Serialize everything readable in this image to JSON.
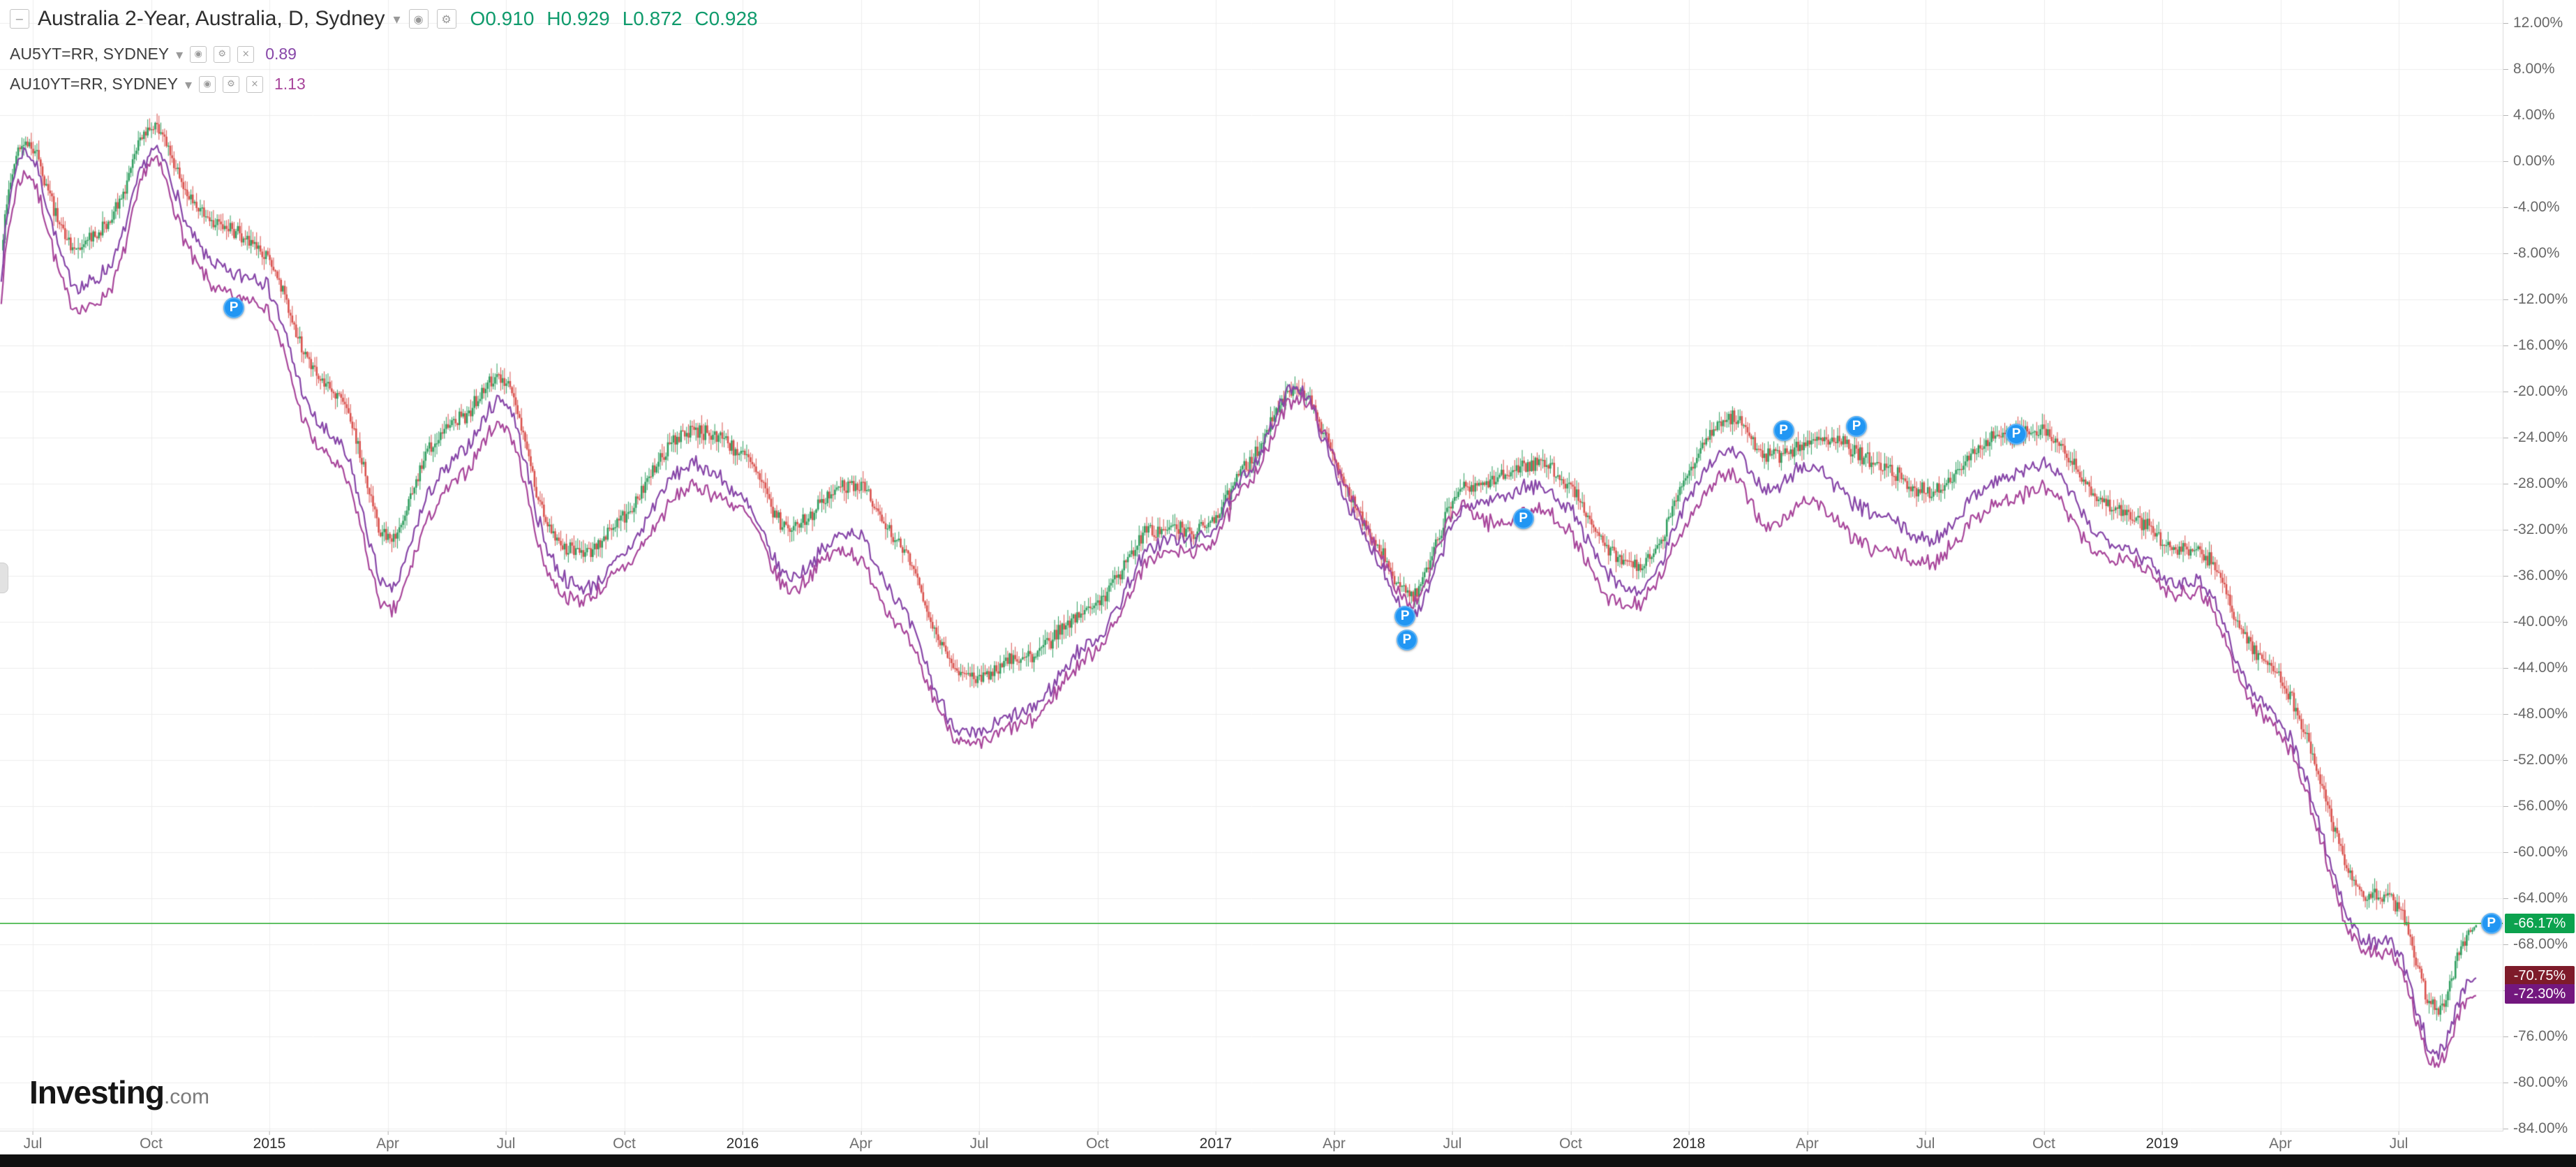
{
  "legend": {
    "collapse_glyph": "−",
    "title": "Australia 2-Year, Australia, D, Sydney",
    "caret": "▾",
    "ohlc": [
      "O0.910",
      "H0.929",
      "L0.872",
      "C0.928"
    ],
    "ohlc_color": "#0f9b6c",
    "icons": {
      "visibility": "◉",
      "settings": "⚙",
      "close": "×"
    },
    "series_rows": [
      {
        "label": "AU5YT=RR, SYDNEY",
        "value": "0.89",
        "color": "#8746a8"
      },
      {
        "label": "AU10YT=RR, SYDNEY",
        "value": "1.13",
        "color": "#a8469b"
      }
    ]
  },
  "logo": {
    "main": "Investing",
    "suffix": ".com"
  },
  "price_scale": {
    "tick_labels": [
      "12.00%",
      "8.00%",
      "4.00%",
      "0.00%",
      "-4.00%",
      "-8.00%",
      "-12.00%",
      "-16.00%",
      "-20.00%",
      "-24.00%",
      "-28.00%",
      "-32.00%",
      "-36.00%",
      "-40.00%",
      "-44.00%",
      "-48.00%",
      "-52.00%",
      "-56.00%",
      "-60.00%",
      "-64.00%",
      "-68.00%",
      "-72.00%",
      "-76.00%",
      "-80.00%",
      "-84.00%"
    ],
    "top_value": 12,
    "step": 4
  },
  "time_scale": {
    "ticks": [
      {
        "label": "Jul",
        "m": 0
      },
      {
        "label": "Oct",
        "m": 3
      },
      {
        "label": "2015",
        "m": 6,
        "year": true
      },
      {
        "label": "Apr",
        "m": 9
      },
      {
        "label": "Jul",
        "m": 12
      },
      {
        "label": "Oct",
        "m": 15
      },
      {
        "label": "2016",
        "m": 18,
        "year": true
      },
      {
        "label": "Apr",
        "m": 21
      },
      {
        "label": "Jul",
        "m": 24
      },
      {
        "label": "Oct",
        "m": 27
      },
      {
        "label": "2017",
        "m": 30,
        "year": true
      },
      {
        "label": "Apr",
        "m": 33
      },
      {
        "label": "Jul",
        "m": 36
      },
      {
        "label": "Oct",
        "m": 39
      },
      {
        "label": "2018",
        "m": 42,
        "year": true
      },
      {
        "label": "Apr",
        "m": 45
      },
      {
        "label": "Jul",
        "m": 48
      },
      {
        "label": "Oct",
        "m": 51
      },
      {
        "label": "2019",
        "m": 54,
        "year": true
      },
      {
        "label": "Apr",
        "m": 57
      },
      {
        "label": "Jul",
        "m": 60
      }
    ]
  },
  "price_labels": [
    {
      "text": "-66.17%",
      "value": -66.17,
      "bg": "#0ca24e"
    },
    {
      "text": "-70.75%",
      "value": -70.75,
      "bg": "#7e1b2a"
    },
    {
      "text": "-72.30%",
      "value": -72.3,
      "bg": "#73177e"
    }
  ],
  "current_price_line": {
    "value": -66.17,
    "color": "#44b649"
  },
  "markers": {
    "glyph": "P",
    "color": "#2196f3",
    "points": [
      {
        "m": 5.1,
        "v": -12.7
      },
      {
        "m": 34.8,
        "v": -39.5
      },
      {
        "m": 34.85,
        "v": -41.6
      },
      {
        "m": 37.8,
        "v": -31.0
      },
      {
        "m": 44.4,
        "v": -23.4
      },
      {
        "m": 46.25,
        "v": -23.0
      },
      {
        "m": 50.3,
        "v": -23.7
      },
      {
        "m": 62.35,
        "v": -66.17
      }
    ]
  },
  "chart_data": {
    "type": "mixed",
    "title": "Australia 2-Year, Australia, D, Sydney",
    "x_start": "2014-07",
    "x_end": "2019-09",
    "x_unit": "months",
    "y_unit": "percent change",
    "ylim": [
      -84,
      12
    ],
    "grid": true,
    "grid_color": "#ededed",
    "legend_position": "top-left",
    "series": [
      {
        "name": "Australia 2-Year (AU2YT)",
        "type": "candlestick",
        "up_color": "#2f9e5f",
        "down_color": "#d9504c",
        "last_close_pct": -66.17,
        "monthly_pct": [
          0,
          -7,
          -5,
          3,
          -5,
          -7,
          -10,
          -17,
          -22,
          -32,
          -26,
          -22,
          -20,
          -30,
          -33,
          -29,
          -25,
          -23,
          -26,
          -31,
          -29,
          -27,
          -33,
          -42,
          -46,
          -44,
          -41,
          -38,
          -33,
          -33,
          -32,
          -27,
          -20,
          -26,
          -32,
          -38,
          -30,
          -29,
          -26,
          -28,
          -32,
          -34,
          -26,
          -23,
          -25,
          -24,
          -23,
          -26,
          -28,
          -27,
          -24,
          -24,
          -27,
          -30,
          -33,
          -35,
          -42,
          -46,
          -54,
          -63,
          -65,
          -74,
          -66.17
        ]
      },
      {
        "name": "AU5YT=RR",
        "type": "line",
        "color": "#8746a8",
        "last_close_pct": -70.75,
        "monthly_pct": [
          -1,
          -10,
          -9,
          1,
          -8,
          -11,
          -13,
          -21,
          -26,
          -36,
          -30,
          -25,
          -22,
          -32,
          -36,
          -32,
          -28,
          -26,
          -30,
          -35,
          -33,
          -31,
          -38,
          -47,
          -51,
          -49,
          -45,
          -41,
          -35,
          -34,
          -33,
          -28,
          -20,
          -27,
          -33,
          -40,
          -32,
          -31,
          -28,
          -30,
          -34,
          -36,
          -28,
          -26,
          -28,
          -26,
          -27,
          -30,
          -32,
          -31,
          -28,
          -27,
          -30,
          -33,
          -36,
          -38,
          -46,
          -50,
          -58,
          -67,
          -69,
          -78,
          -70.75
        ]
      },
      {
        "name": "AU10YT=RR",
        "type": "line",
        "color": "#a8469b",
        "last_close_pct": -72.3,
        "monthly_pct": [
          -3,
          -12,
          -11,
          0,
          -10,
          -13,
          -15,
          -23,
          -28,
          -38,
          -32,
          -27,
          -24,
          -34,
          -37,
          -33,
          -30,
          -28,
          -31,
          -36,
          -34,
          -33,
          -40,
          -48,
          -52,
          -50,
          -46,
          -42,
          -36,
          -35,
          -34,
          -29,
          -21,
          -26,
          -32,
          -39,
          -31,
          -33,
          -30,
          -32,
          -36,
          -37,
          -30,
          -28,
          -31,
          -29,
          -30,
          -33,
          -34,
          -33,
          -30,
          -29,
          -32,
          -34,
          -37,
          -39,
          -47,
          -51,
          -59,
          -68,
          -70,
          -79,
          -72.3
        ]
      }
    ]
  }
}
